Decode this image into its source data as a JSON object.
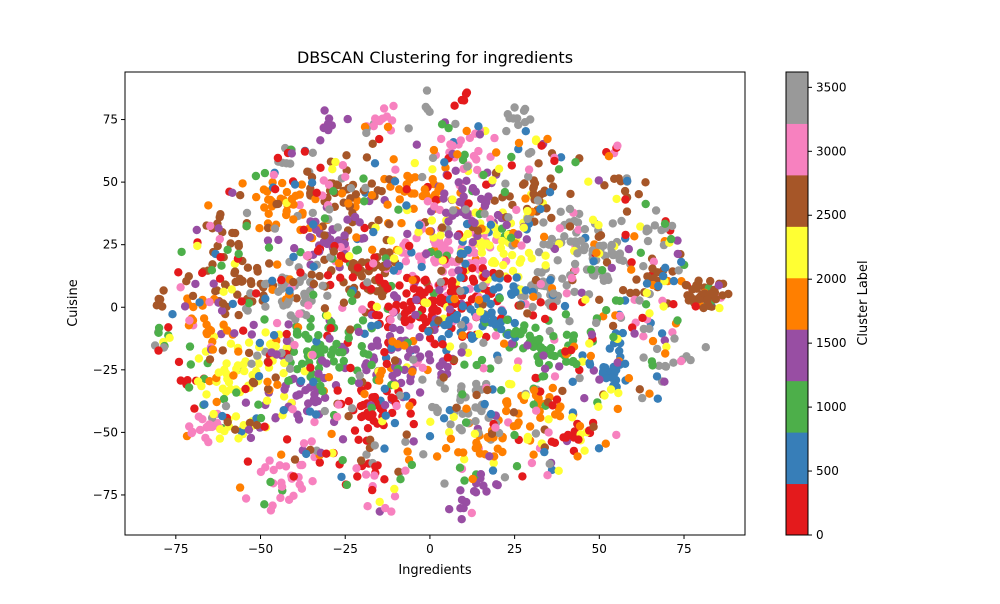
{
  "chart_data": {
    "type": "scatter",
    "title": "DBSCAN Clustering for ingredients",
    "xlabel": "Ingredients",
    "ylabel": "Cuisine",
    "xlim": [
      -90,
      93
    ],
    "ylim": [
      -91,
      94
    ],
    "x_ticks": [
      -75,
      -50,
      -25,
      0,
      25,
      50,
      75
    ],
    "y_ticks": [
      -75,
      -50,
      -25,
      0,
      25,
      50,
      75
    ],
    "grid": false,
    "colorbar": {
      "label": "Cluster Label",
      "range": [
        0,
        3620
      ],
      "ticks": [
        0,
        500,
        1000,
        1500,
        2000,
        2500,
        3000,
        3500
      ],
      "colormap": "Set1",
      "colors": [
        "#e41a1c",
        "#377eb8",
        "#4daf4a",
        "#984ea3",
        "#ff7f00",
        "#ffff33",
        "#a65628",
        "#f781bf",
        "#999999"
      ]
    },
    "clusters": [
      {
        "x": 82,
        "y": 5,
        "r": 3,
        "n": 55,
        "c": 6
      },
      {
        "x": -15,
        "y": -79,
        "r": 3,
        "n": 8,
        "c": 7
      },
      {
        "x": 7,
        "y": -80,
        "r": 2.5,
        "n": 7,
        "c": 3
      },
      {
        "x": 8,
        "y": 84,
        "r": 2,
        "n": 5,
        "c": 0
      },
      {
        "x": -66,
        "y": -47,
        "r": 3,
        "n": 20,
        "c": 7
      },
      {
        "x": -57,
        "y": -48,
        "r": 4,
        "n": 18,
        "c": 5
      },
      {
        "x": -78,
        "y": -13,
        "r": 2.5,
        "n": 10,
        "c": 2
      },
      {
        "x": -80,
        "y": 3,
        "r": 2,
        "n": 5,
        "c": 6
      },
      {
        "x": -72,
        "y": -29,
        "r": 2,
        "n": 5,
        "c": 0
      },
      {
        "x": 67,
        "y": 31,
        "r": 3,
        "n": 12,
        "c": 8
      },
      {
        "x": 70,
        "y": -22,
        "r": 3,
        "n": 10,
        "c": 8
      },
      {
        "x": 43,
        "y": -52,
        "r": 3,
        "n": 14,
        "c": 0
      },
      {
        "x": 18,
        "y": -53,
        "r": 4,
        "n": 22,
        "c": 4
      },
      {
        "x": 15,
        "y": -72,
        "r": 3,
        "n": 10,
        "c": 3
      },
      {
        "x": -45,
        "y": -68,
        "r": 5,
        "n": 30,
        "c": 7
      },
      {
        "x": -20,
        "y": -65,
        "r": 5,
        "n": 20,
        "c": 0
      },
      {
        "x": -40,
        "y": 60,
        "r": 3,
        "n": 10,
        "c": 8
      },
      {
        "x": -30,
        "y": 75,
        "r": 3,
        "n": 8,
        "c": 3
      },
      {
        "x": -15,
        "y": 75,
        "r": 3,
        "n": 12,
        "c": 7
      },
      {
        "x": 0,
        "y": 80,
        "r": 2,
        "n": 4,
        "c": 8
      },
      {
        "x": 25,
        "y": 75,
        "r": 3,
        "n": 12,
        "c": 8
      },
      {
        "x": 53,
        "y": 62,
        "r": 2,
        "n": 5,
        "c": 7
      },
      {
        "x": 56,
        "y": 48,
        "r": 3,
        "n": 10,
        "c": 6
      },
      {
        "x": 45,
        "y": 25,
        "r": 6,
        "n": 45,
        "c": 8
      },
      {
        "x": 52,
        "y": 18,
        "r": 5,
        "n": 30,
        "c": 8
      },
      {
        "x": 35,
        "y": 5,
        "r": 6,
        "n": 40,
        "c": 8
      },
      {
        "x": 28,
        "y": -15,
        "r": 6,
        "n": 35,
        "c": 2
      },
      {
        "x": 50,
        "y": -25,
        "r": 5,
        "n": 25,
        "c": 1
      },
      {
        "x": 60,
        "y": -8,
        "r": 4,
        "n": 15,
        "c": 1
      },
      {
        "x": 65,
        "y": 12,
        "r": 5,
        "n": 20,
        "c": 6
      },
      {
        "x": 10,
        "y": 60,
        "r": 5,
        "n": 25,
        "c": 7
      },
      {
        "x": -5,
        "y": 45,
        "r": 6,
        "n": 40,
        "c": 4
      },
      {
        "x": 5,
        "y": 20,
        "r": 8,
        "n": 80,
        "c": 7
      },
      {
        "x": 20,
        "y": 25,
        "r": 8,
        "n": 70,
        "c": 5
      },
      {
        "x": -25,
        "y": 45,
        "r": 6,
        "n": 40,
        "c": 6
      },
      {
        "x": -45,
        "y": 40,
        "r": 6,
        "n": 40,
        "c": 4
      },
      {
        "x": -60,
        "y": 30,
        "r": 4,
        "n": 15,
        "c": 6
      },
      {
        "x": -55,
        "y": 10,
        "r": 6,
        "n": 40,
        "c": 6
      },
      {
        "x": -40,
        "y": 5,
        "r": 6,
        "n": 40,
        "c": 8
      },
      {
        "x": -20,
        "y": 15,
        "r": 7,
        "n": 60,
        "c": 6
      },
      {
        "x": 0,
        "y": 0,
        "r": 10,
        "n": 130,
        "c": 0
      },
      {
        "x": 15,
        "y": -5,
        "r": 8,
        "n": 80,
        "c": 1
      },
      {
        "x": -10,
        "y": -20,
        "r": 8,
        "n": 70,
        "c": 3
      },
      {
        "x": -30,
        "y": -15,
        "r": 7,
        "n": 60,
        "c": 2
      },
      {
        "x": -50,
        "y": -15,
        "r": 6,
        "n": 40,
        "c": 5
      },
      {
        "x": -40,
        "y": -35,
        "r": 6,
        "n": 40,
        "c": 3
      },
      {
        "x": -15,
        "y": -40,
        "r": 6,
        "n": 40,
        "c": 0
      },
      {
        "x": 10,
        "y": -40,
        "r": 6,
        "n": 40,
        "c": 8
      },
      {
        "x": 30,
        "y": -40,
        "r": 5,
        "n": 30,
        "c": 4
      },
      {
        "x": 40,
        "y": -15,
        "r": 5,
        "n": 30,
        "c": 2
      },
      {
        "x": -65,
        "y": -5,
        "r": 5,
        "n": 20,
        "c": 4
      },
      {
        "x": -60,
        "y": -30,
        "r": 5,
        "n": 25,
        "c": 5
      },
      {
        "x": -30,
        "y": 25,
        "r": 6,
        "n": 40,
        "c": 3
      },
      {
        "x": 10,
        "y": 40,
        "r": 7,
        "n": 50,
        "c": 3
      },
      {
        "x": 30,
        "y": 45,
        "r": 5,
        "n": 30,
        "c": 6
      },
      {
        "x": 0,
        "y": 0,
        "r": 75,
        "n": 650,
        "c": -1
      }
    ]
  }
}
